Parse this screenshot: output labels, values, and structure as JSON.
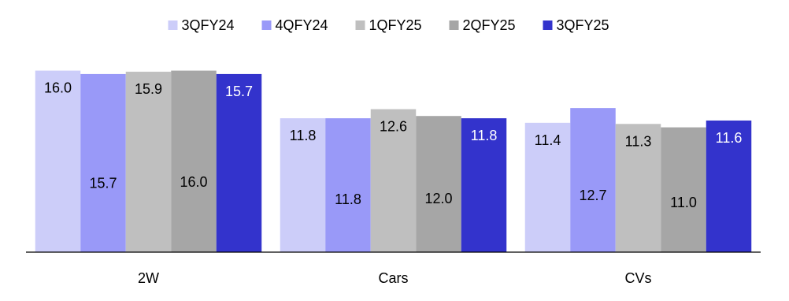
{
  "chart_data": {
    "type": "bar",
    "title": "",
    "xlabel": "",
    "ylabel": "",
    "categories": [
      "2W",
      "Cars",
      "CVs"
    ],
    "series": [
      {
        "name": "3QFY24",
        "color": "#cccdf9",
        "values": [
          16.0,
          11.8,
          11.4
        ]
      },
      {
        "name": "4QFY24",
        "color": "#9999f8",
        "values": [
          15.7,
          11.8,
          12.7
        ]
      },
      {
        "name": "1QFY25",
        "color": "#bfbfbf",
        "values": [
          15.9,
          12.6,
          11.3
        ]
      },
      {
        "name": "2QFY25",
        "color": "#a6a6a6",
        "values": [
          16.0,
          12.0,
          11.0
        ]
      },
      {
        "name": "3QFY25",
        "color": "#3333cc",
        "values": [
          15.7,
          11.8,
          11.6
        ]
      }
    ],
    "ylim": [
      0,
      17
    ],
    "grid": false,
    "legend": "top"
  }
}
